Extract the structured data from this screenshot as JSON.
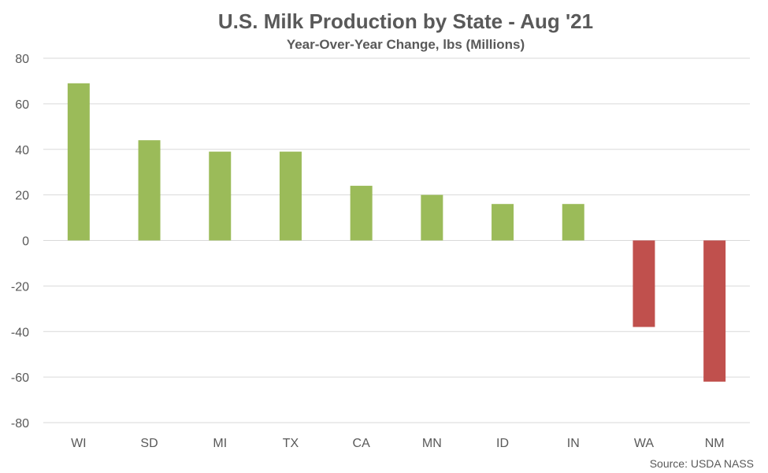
{
  "chart_data": {
    "type": "bar",
    "title": "U.S. Milk Production by State - Aug '21",
    "subtitle": "Year-Over-Year Change, lbs (Millions)",
    "categories": [
      "WI",
      "SD",
      "MI",
      "TX",
      "CA",
      "MN",
      "ID",
      "IN",
      "WA",
      "NM"
    ],
    "values": [
      69,
      44,
      39,
      39,
      24,
      20,
      16,
      16,
      -38,
      -62
    ],
    "ylim": [
      -80,
      80
    ],
    "yticks": [
      80,
      60,
      40,
      20,
      0,
      -20,
      -40,
      -60,
      -80
    ],
    "grid": true,
    "legend": "none",
    "colors": {
      "positive": "#9BBB59",
      "negative": "#C0504D",
      "grid": "#D9D9D9",
      "text": "#595959"
    }
  },
  "source": "Source: USDA NASS"
}
